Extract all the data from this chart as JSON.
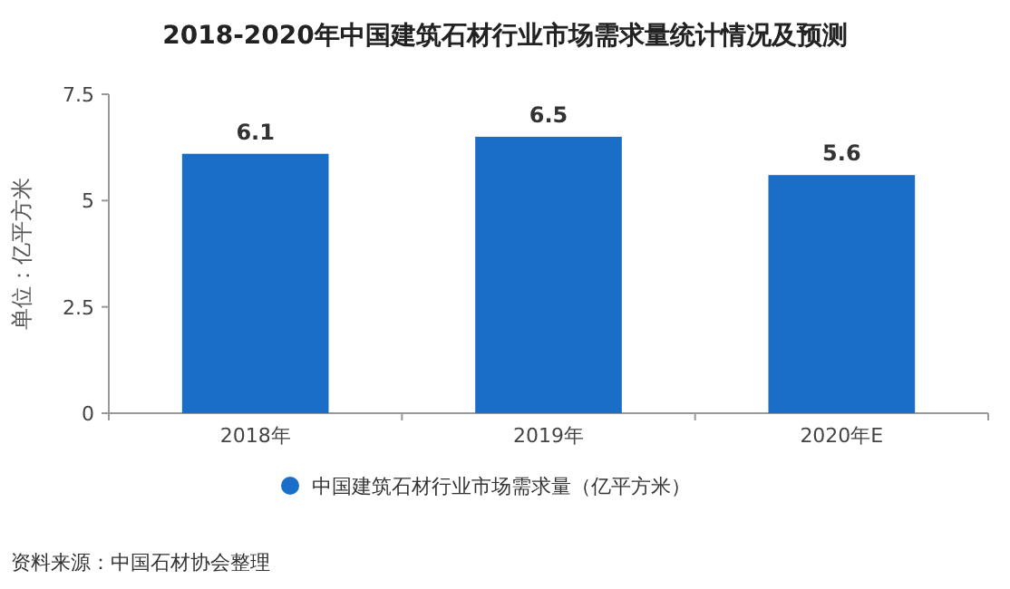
{
  "chart_data": {
    "type": "bar",
    "title": "2018-2020年中国建筑石材行业市场需求量统计情况及预测",
    "ylabel": "单位：亿平方米",
    "categories": [
      "2018年",
      "2019年",
      "2020年E"
    ],
    "series": [
      {
        "name": "中国建筑石材行业市场需求量（亿平方米）",
        "color": "#1a6ec8",
        "values": [
          6.1,
          6.5,
          5.6
        ]
      }
    ],
    "ylim": [
      0,
      7.5
    ],
    "yticks": [
      0,
      2.5,
      5,
      7.5
    ],
    "data_labels": true,
    "legend": "bottom",
    "annotations": [
      "资料来源：中国石材协会整理"
    ]
  }
}
